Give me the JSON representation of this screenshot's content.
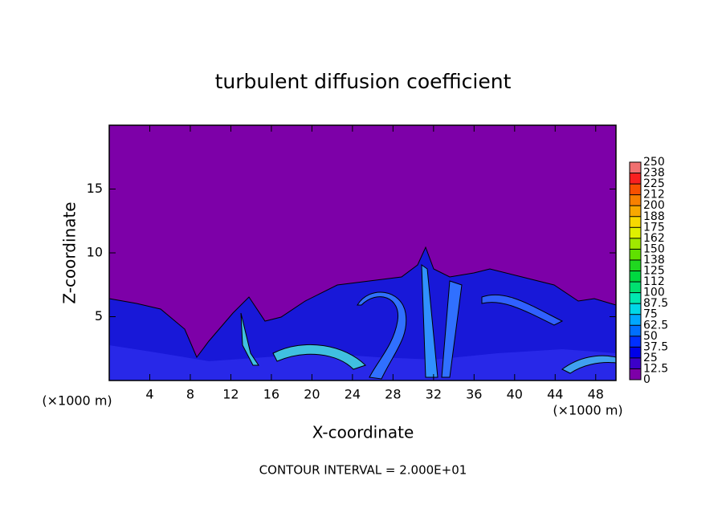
{
  "chart_data": {
    "type": "contour",
    "title": "turbulent diffusion coefficient",
    "x_label": "X-coordinate",
    "y_label": "Z-coordinate",
    "x_unit_label": "(×1000 m)",
    "y_unit_label": "(×1000 m)",
    "footer": "CONTOUR INTERVAL = 2.000E+01",
    "xlim": [
      0,
      50
    ],
    "ylim": [
      0,
      20
    ],
    "xticks": [
      4,
      8,
      12,
      16,
      20,
      24,
      28,
      32,
      36,
      40,
      44,
      48
    ],
    "yticks": [
      5,
      10,
      15
    ],
    "colorbar": {
      "ticks": [
        0,
        12.5,
        25,
        37.5,
        50,
        62.5,
        75,
        87.5,
        100,
        {
          "value": 112.5,
          "label": "112"
        },
        125,
        {
          "value": 137.5,
          "label": "138"
        },
        150,
        {
          "value": 162.5,
          "label": "162"
        },
        175,
        {
          "value": 187.5,
          "label": "188"
        },
        200,
        {
          "value": 212.5,
          "label": "212"
        },
        225,
        {
          "value": 237.5,
          "label": "238"
        },
        250
      ],
      "colors": [
        "#7d00a8",
        "#3c00c8",
        "#0000e8",
        "#0030ff",
        "#0070ff",
        "#00a8ff",
        "#00d8e8",
        "#00e8b0",
        "#00e070",
        "#00d840",
        "#20d820",
        "#60e000",
        "#a0e800",
        "#e0f000",
        "#f8d800",
        "#f8a800",
        "#f88000",
        "#f85000",
        "#f82020",
        "#f07070"
      ]
    }
  }
}
